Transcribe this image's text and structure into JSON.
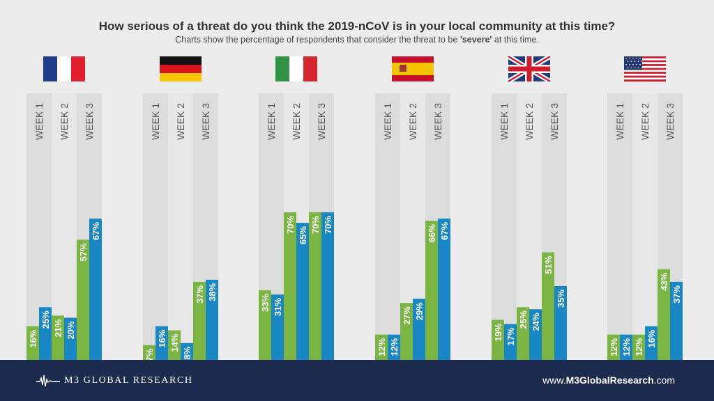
{
  "header": {
    "title": "How serious of a threat do you think the 2019-nCoV is in your local community at this time?",
    "subtitle_pre": "Charts show the percentage of respondents that consider the threat to be ",
    "subtitle_bold": "'severe'",
    "subtitle_post": " at this time."
  },
  "colors": {
    "green": "#7ab541",
    "blue": "#1a87c5",
    "band_dark": "#dcdcdc",
    "band_light": "#e7e7e7",
    "week_label": "#555555"
  },
  "chart_data": {
    "type": "bar",
    "ylim": [
      0,
      100
    ],
    "week_labels": [
      "WEEK 1",
      "WEEK 2",
      "WEEK 3"
    ],
    "countries": [
      {
        "flag": "france-flag",
        "pairs": [
          [
            16,
            25
          ],
          [
            21,
            20
          ],
          [
            57,
            67
          ]
        ]
      },
      {
        "flag": "germany-flag",
        "pairs": [
          [
            7,
            16
          ],
          [
            14,
            8
          ],
          [
            37,
            38
          ]
        ]
      },
      {
        "flag": "italy-flag",
        "pairs": [
          [
            33,
            31
          ],
          [
            70,
            65
          ],
          [
            70,
            70
          ]
        ]
      },
      {
        "flag": "spain-flag",
        "pairs": [
          [
            12,
            12
          ],
          [
            27,
            29
          ],
          [
            66,
            67
          ]
        ]
      },
      {
        "flag": "uk-flag",
        "pairs": [
          [
            19,
            17
          ],
          [
            25,
            24
          ],
          [
            51,
            35
          ]
        ]
      },
      {
        "flag": "usa-flag",
        "pairs": [
          [
            12,
            12
          ],
          [
            12,
            16
          ],
          [
            43,
            37
          ]
        ]
      }
    ]
  },
  "footer": {
    "logo_text": "M3  GLOBAL RESEARCH",
    "website_pre": "www.",
    "website_bold": "M3GlobalResearch",
    "website_post": ".com"
  }
}
